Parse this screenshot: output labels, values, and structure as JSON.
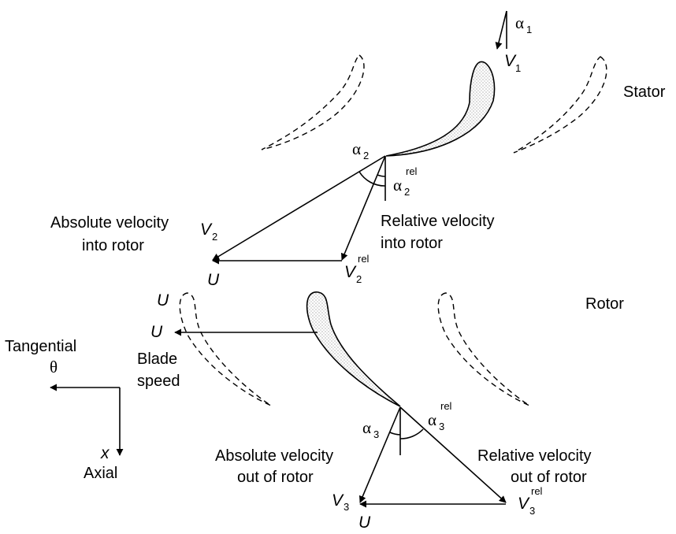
{
  "labels": {
    "stator": "Stator",
    "rotor": "Rotor",
    "abs_in_1": "Absolute velocity",
    "abs_in_2": "into rotor",
    "rel_in_1": "Relative velocity",
    "rel_in_2": "into rotor",
    "abs_out_1": "Absolute velocity",
    "abs_out_2": "out of rotor",
    "rel_out_1": "Relative velocity",
    "rel_out_2": "out of rotor",
    "blade_1": "Blade",
    "blade_2": "speed",
    "tangential": "Tangential",
    "axial": "Axial"
  },
  "symbols": {
    "alpha": "α",
    "theta": "θ",
    "x": "x",
    "V": "V",
    "U": "U",
    "sub_1": "1",
    "sub_2": "2",
    "sub_3": "3",
    "sup_rel": "rel"
  }
}
